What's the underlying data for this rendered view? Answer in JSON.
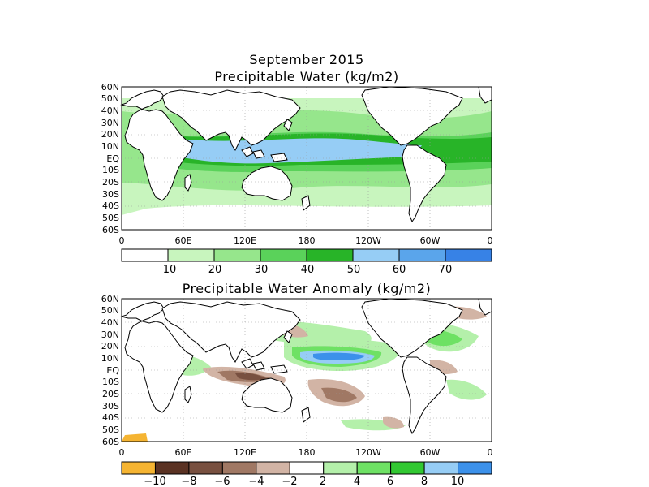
{
  "figure": {
    "title_line1": "September 2015",
    "title_line2": "Precipitable Water (kg/m2)",
    "title_anomaly": "Precipitable Water Anomaly (kg/m2)"
  },
  "axes": {
    "lat_labels": [
      "60N",
      "50N",
      "40N",
      "30N",
      "20N",
      "10N",
      "EQ",
      "10S",
      "20S",
      "30S",
      "40S",
      "50S",
      "60S"
    ],
    "lon_labels": [
      "0",
      "60E",
      "120E",
      "180",
      "120W",
      "60W",
      "0"
    ]
  },
  "colorbars": {
    "pw": {
      "labels": [
        "10",
        "20",
        "30",
        "40",
        "50",
        "60",
        "70"
      ],
      "colors": [
        "#ffffff",
        "#c8f5be",
        "#96e68c",
        "#5ad25a",
        "#28b428",
        "#96cdf5",
        "#5aa5eb",
        "#3782e6"
      ]
    },
    "anomaly": {
      "labels": [
        "−10",
        "−8",
        "−6",
        "−4",
        "−2",
        "2",
        "4",
        "6",
        "8",
        "10"
      ],
      "colors": [
        "#f5b432",
        "#5a3223",
        "#785040",
        "#a07864",
        "#d2b4a5",
        "#ffffff",
        "#b4f0aa",
        "#6ee164",
        "#32c832",
        "#96cdf5",
        "#3c91ea"
      ]
    }
  }
}
